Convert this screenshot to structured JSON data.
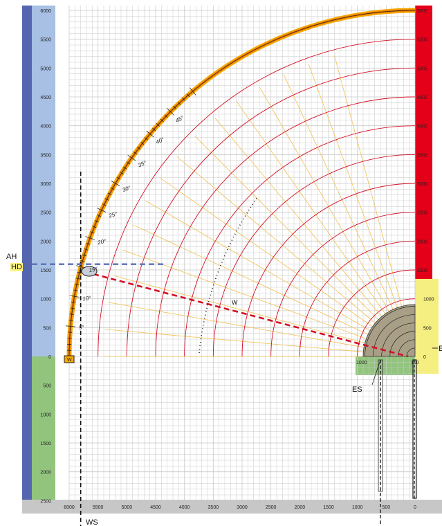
{
  "labels": {
    "ah": "AH",
    "hd": "HD",
    "ws": "WS",
    "es": "ES",
    "w_marker": "W",
    "w_line": "W",
    "right_edge": "E",
    "box_1000": "1000",
    "box_100": "100"
  },
  "chart_data": {
    "type": "diagram",
    "x_ticks": [
      6000,
      5500,
      5000,
      4500,
      4000,
      3500,
      3000,
      2500,
      2000,
      1500,
      1000,
      500,
      0
    ],
    "left_up_ticks": [
      6000,
      5500,
      5000,
      4500,
      4000,
      3500,
      3000,
      2500,
      2000,
      1500,
      1000,
      500,
      0
    ],
    "left_down_ticks": [
      500,
      1000,
      1500,
      2000,
      2500
    ],
    "right_red_ticks": [
      6000,
      5500,
      5000,
      4500,
      4000,
      3500,
      3000,
      2500,
      2000,
      1500
    ],
    "right_yellow_ticks": [
      1000,
      500,
      0
    ],
    "angle_labels": [
      "5°",
      "10°",
      "15°",
      "20°",
      "25°",
      "30°",
      "35°",
      "40°",
      "45°"
    ],
    "angles_deg": [
      5,
      10,
      15,
      20,
      25,
      30,
      35,
      40,
      45
    ],
    "arc_radii": [
      6000,
      5500,
      5000,
      4500,
      4000,
      3500,
      3000,
      2500,
      2000,
      1500,
      1000,
      500
    ],
    "radial_angles_deg": [
      5,
      10,
      15,
      20,
      25,
      30,
      35,
      40,
      45,
      50,
      55,
      60,
      65,
      70,
      75
    ],
    "small_arc_radii": [
      600,
      500,
      400,
      300,
      200,
      100
    ],
    "boom_radius": 6000,
    "boom_angle_range": [
      0,
      90
    ],
    "ws_x": 5800,
    "ah_height": 1600,
    "load_point": [
      5700,
      1500
    ],
    "es_x": 600,
    "colors": {
      "left_bar": "#5566b0",
      "left_up": "#a7c0e4",
      "left_down": "#92c47e",
      "right_red": "#e50019",
      "right_yellow": "#f5ee80",
      "bottom_bar": "#c7c7c7",
      "arc": "#d50f25",
      "radial": "#f2c14e",
      "boom_outer": "#f6a800",
      "boom_inner": "#e87400",
      "hd_line": "#5a6fb8",
      "load_line": "#d50f25",
      "grid": "#c9c9c9"
    }
  }
}
